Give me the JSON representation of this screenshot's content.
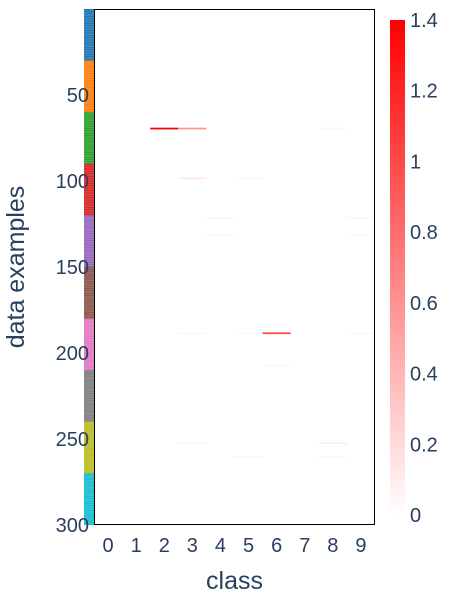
{
  "chart_data": {
    "type": "heatmap",
    "title": "",
    "xlabel": "class",
    "ylabel": "data examples",
    "x_categories": [
      "0",
      "1",
      "2",
      "3",
      "4",
      "5",
      "6",
      "7",
      "8",
      "9"
    ],
    "x_tick_labels": [
      "0",
      "1",
      "2",
      "3",
      "4",
      "5",
      "6",
      "7",
      "8",
      "9"
    ],
    "y_range": [
      0,
      300
    ],
    "y_reversed": true,
    "y_tick_values": [
      50,
      100,
      150,
      200,
      250,
      300
    ],
    "y_tick_labels": [
      "50",
      "100",
      "150",
      "200",
      "250",
      "300"
    ],
    "colorscale": {
      "min": 0,
      "max": 1.4,
      "low_color": "#ffffff",
      "high_color": "#ff0000",
      "tick_values": [
        0,
        0.2,
        0.4,
        0.6,
        0.8,
        1,
        1.2,
        1.4
      ],
      "tick_labels": [
        "0",
        "0.2",
        "0.4",
        "0.6",
        "0.8",
        "1",
        "1.2",
        "1.4"
      ]
    },
    "class_strip": {
      "groups": [
        {
          "start": 0,
          "end": 30,
          "color": "#1f77b4"
        },
        {
          "start": 30,
          "end": 60,
          "color": "#ff7f0e"
        },
        {
          "start": 60,
          "end": 90,
          "color": "#2ca02c"
        },
        {
          "start": 90,
          "end": 120,
          "color": "#d62728"
        },
        {
          "start": 120,
          "end": 150,
          "color": "#9467bd"
        },
        {
          "start": 150,
          "end": 180,
          "color": "#8c564b"
        },
        {
          "start": 180,
          "end": 210,
          "color": "#e377c2"
        },
        {
          "start": 210,
          "end": 240,
          "color": "#7f7f7f"
        },
        {
          "start": 240,
          "end": 270,
          "color": "#bcbd22"
        },
        {
          "start": 270,
          "end": 300,
          "color": "#17becf"
        }
      ]
    },
    "cells": [
      {
        "row": 69,
        "class": 2,
        "value": 1.4
      },
      {
        "row": 69,
        "class": 3,
        "value": 0.6
      },
      {
        "row": 69,
        "class": 8,
        "value": 0.05
      },
      {
        "row": 98,
        "class": 3,
        "value": 0.12
      },
      {
        "row": 98,
        "class": 5,
        "value": 0.05
      },
      {
        "row": 121,
        "class": 4,
        "value": 0.05
      },
      {
        "row": 121,
        "class": 9,
        "value": 0.05
      },
      {
        "row": 131,
        "class": 4,
        "value": 0.06
      },
      {
        "row": 131,
        "class": 9,
        "value": 0.04
      },
      {
        "row": 188,
        "class": 3,
        "value": 0.05
      },
      {
        "row": 188,
        "class": 5,
        "value": 0.04
      },
      {
        "row": 188,
        "class": 6,
        "value": 1.0
      },
      {
        "row": 188,
        "class": 9,
        "value": 0.05
      },
      {
        "row": 207,
        "class": 6,
        "value": 0.04
      },
      {
        "row": 252,
        "class": 3,
        "value": 0.07
      },
      {
        "row": 252,
        "class": 8,
        "value": 0.1
      },
      {
        "row": 260,
        "class": 5,
        "value": 0.06
      },
      {
        "row": 260,
        "class": 8,
        "value": 0.05
      }
    ]
  }
}
